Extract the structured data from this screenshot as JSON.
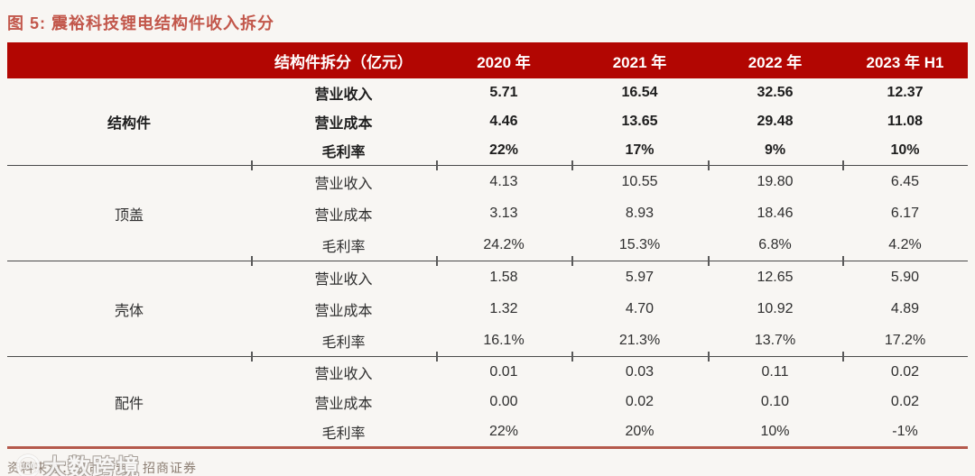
{
  "title": "图 5:  震裕科技锂电结构件收入拆分",
  "table": {
    "header": {
      "metric_label": "结构件拆分（亿元）",
      "years": [
        "2020 年",
        "2021 年",
        "2022 年",
        "2023 年 H1"
      ]
    },
    "groups": [
      {
        "name": "结构件",
        "rows": [
          {
            "metric": "营业收入",
            "values": [
              "5.71",
              "16.54",
              "32.56",
              "12.37"
            ]
          },
          {
            "metric": "营业成本",
            "values": [
              "4.46",
              "13.65",
              "29.48",
              "11.08"
            ]
          },
          {
            "metric": "毛利率",
            "values": [
              "22%",
              "17%",
              "9%",
              "10%"
            ]
          }
        ]
      },
      {
        "name": "顶盖",
        "rows": [
          {
            "metric": "营业收入",
            "values": [
              "4.13",
              "10.55",
              "19.80",
              "6.45"
            ]
          },
          {
            "metric": "营业成本",
            "values": [
              "3.13",
              "8.93",
              "18.46",
              "6.17"
            ]
          },
          {
            "metric": "毛利率",
            "values": [
              "24.2%",
              "15.3%",
              "6.8%",
              "4.2%"
            ]
          }
        ]
      },
      {
        "name": "壳体",
        "rows": [
          {
            "metric": "营业收入",
            "values": [
              "1.58",
              "5.97",
              "12.65",
              "5.90"
            ]
          },
          {
            "metric": "营业成本",
            "values": [
              "1.32",
              "4.70",
              "10.92",
              "4.89"
            ]
          },
          {
            "metric": "毛利率",
            "values": [
              "16.1%",
              "21.3%",
              "13.7%",
              "17.2%"
            ]
          }
        ]
      },
      {
        "name": "配件",
        "rows": [
          {
            "metric": "营业收入",
            "values": [
              "0.01",
              "0.03",
              "0.11",
              "0.02"
            ]
          },
          {
            "metric": "营业成本",
            "values": [
              "0.00",
              "0.02",
              "0.10",
              "0.02"
            ]
          },
          {
            "metric": "毛利率",
            "values": [
              "22%",
              "20%",
              "10%",
              "-1%"
            ]
          }
        ]
      }
    ]
  },
  "footer": {
    "source": "资料来源：公司公告、招商证券"
  },
  "watermark": {
    "text": "大数跨境",
    "logo_label": "100"
  },
  "colors": {
    "header_bg": "#b20602",
    "title_red": "#c2574b",
    "bottom_border": "#b5594c",
    "page_bg": "#f8f6f3",
    "footer_text": "#8b7d72"
  }
}
